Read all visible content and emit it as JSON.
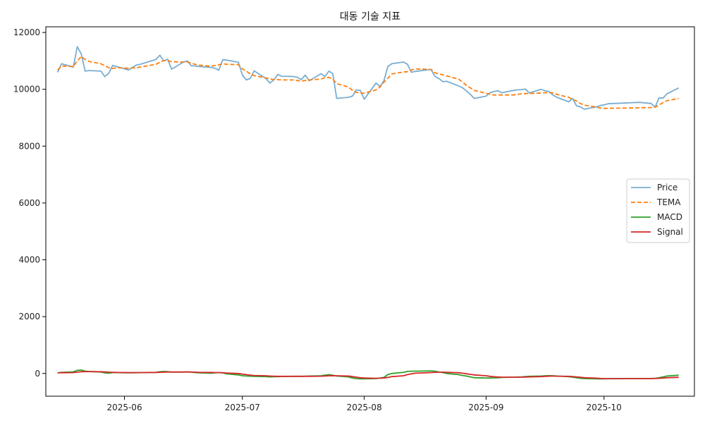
{
  "chart_data": {
    "type": "line",
    "title": "대동 기술 지표",
    "xlabel": "",
    "ylabel": "",
    "x_axis_type": "date",
    "xlim": [
      "2025-05-12",
      "2025-10-24"
    ],
    "ylim": [
      -800,
      12200
    ],
    "x_ticks": [
      "2025-06-01",
      "2025-07-01",
      "2025-08-01",
      "2025-09-01",
      "2025-10-01"
    ],
    "x_tick_labels": [
      "2025-06",
      "2025-07",
      "2025-08",
      "2025-09",
      "2025-10"
    ],
    "y_ticks": [
      0,
      2000,
      4000,
      6000,
      8000,
      10000,
      12000
    ],
    "y_tick_labels": [
      "0",
      "2000",
      "4000",
      "6000",
      "8000",
      "10000",
      "12000"
    ],
    "grid": false,
    "legend_position": "right",
    "dates": [
      "2025-05-15",
      "2025-05-16",
      "2025-05-19",
      "2025-05-20",
      "2025-05-21",
      "2025-05-22",
      "2025-05-23",
      "2025-05-26",
      "2025-05-27",
      "2025-05-28",
      "2025-05-29",
      "2025-05-30",
      "2025-06-02",
      "2025-06-04",
      "2025-06-05",
      "2025-06-09",
      "2025-06-10",
      "2025-06-11",
      "2025-06-12",
      "2025-06-13",
      "2025-06-16",
      "2025-06-17",
      "2025-06-18",
      "2025-06-19",
      "2025-06-20",
      "2025-06-23",
      "2025-06-24",
      "2025-06-25",
      "2025-06-26",
      "2025-06-27",
      "2025-06-30",
      "2025-07-01",
      "2025-07-02",
      "2025-07-03",
      "2025-07-04",
      "2025-07-07",
      "2025-07-08",
      "2025-07-09",
      "2025-07-10",
      "2025-07-11",
      "2025-07-14",
      "2025-07-15",
      "2025-07-16",
      "2025-07-17",
      "2025-07-18",
      "2025-07-21",
      "2025-07-22",
      "2025-07-23",
      "2025-07-24",
      "2025-07-25",
      "2025-07-28",
      "2025-07-29",
      "2025-07-30",
      "2025-07-31",
      "2025-08-01",
      "2025-08-04",
      "2025-08-05",
      "2025-08-06",
      "2025-08-07",
      "2025-08-08",
      "2025-08-11",
      "2025-08-12",
      "2025-08-13",
      "2025-08-14",
      "2025-08-18",
      "2025-08-19",
      "2025-08-20",
      "2025-08-21",
      "2025-08-22",
      "2025-08-25",
      "2025-08-26",
      "2025-08-27",
      "2025-08-28",
      "2025-08-29",
      "2025-09-01",
      "2025-09-02",
      "2025-09-03",
      "2025-09-04",
      "2025-09-05",
      "2025-09-08",
      "2025-09-09",
      "2025-09-10",
      "2025-09-11",
      "2025-09-12",
      "2025-09-15",
      "2025-09-16",
      "2025-09-17",
      "2025-09-18",
      "2025-09-19",
      "2025-09-22",
      "2025-09-23",
      "2025-09-24",
      "2025-09-25",
      "2025-09-26",
      "2025-09-29",
      "2025-09-30",
      "2025-10-01",
      "2025-10-02",
      "2025-10-10",
      "2025-10-13",
      "2025-10-14",
      "2025-10-15",
      "2025-10-16",
      "2025-10-17",
      "2025-10-20"
    ],
    "series": [
      {
        "name": "Price",
        "color": "#1f77b4",
        "line_style": "solid",
        "opacity": 0.6,
        "values": [
          10600,
          10900,
          10780,
          11500,
          11250,
          10640,
          10660,
          10640,
          10450,
          10560,
          10840,
          10800,
          10680,
          10850,
          10880,
          11050,
          11200,
          11000,
          11060,
          10710,
          10960,
          11000,
          10830,
          10820,
          10800,
          10770,
          10740,
          10670,
          11040,
          11030,
          10950,
          10500,
          10330,
          10380,
          10650,
          10380,
          10220,
          10330,
          10520,
          10460,
          10450,
          10420,
          10340,
          10500,
          10300,
          10550,
          10450,
          10640,
          10550,
          9680,
          9720,
          9760,
          9980,
          9960,
          9650,
          10220,
          10100,
          10300,
          10800,
          10900,
          10960,
          10880,
          10600,
          10630,
          10700,
          10450,
          10380,
          10270,
          10280,
          10120,
          10060,
          9940,
          9820,
          9680,
          9760,
          9880,
          9920,
          9950,
          9880,
          9960,
          9980,
          9990,
          10010,
          9870,
          10000,
          9950,
          9920,
          9800,
          9720,
          9560,
          9680,
          9420,
          9380,
          9300,
          9380,
          9430,
          9450,
          9490,
          9540,
          9500,
          9370,
          9700,
          9690,
          9840,
          10050
        ]
      },
      {
        "name": "TEMA",
        "color": "#ff7f0e",
        "line_style": "dashed",
        "opacity": 1,
        "values": [
          10680,
          10820,
          10800,
          11000,
          11150,
          11050,
          10980,
          10900,
          10830,
          10760,
          10730,
          10760,
          10740,
          10760,
          10780,
          10880,
          10950,
          11010,
          11010,
          10970,
          10960,
          10960,
          10920,
          10880,
          10850,
          10810,
          10840,
          10860,
          10900,
          10880,
          10870,
          10720,
          10640,
          10540,
          10480,
          10400,
          10370,
          10340,
          10340,
          10330,
          10330,
          10310,
          10290,
          10310,
          10330,
          10360,
          10410,
          10420,
          10360,
          10200,
          10080,
          9970,
          9890,
          9870,
          9860,
          9980,
          10080,
          10250,
          10390,
          10540,
          10610,
          10620,
          10680,
          10720,
          10700,
          10580,
          10540,
          10510,
          10470,
          10360,
          10250,
          10140,
          10050,
          9960,
          9860,
          9820,
          9800,
          9800,
          9800,
          9800,
          9820,
          9840,
          9850,
          9850,
          9870,
          9880,
          9890,
          9870,
          9820,
          9720,
          9640,
          9590,
          9500,
          9440,
          9380,
          9340,
          9330,
          9330,
          9350,
          9360,
          9370,
          9450,
          9530,
          9600,
          9680
        ]
      },
      {
        "name": "MACD",
        "color": "#2ca02c",
        "line_style": "solid",
        "opacity": 1,
        "values": [
          20,
          40,
          55,
          110,
          120,
          80,
          70,
          50,
          20,
          10,
          30,
          30,
          20,
          25,
          30,
          40,
          60,
          70,
          65,
          45,
          50,
          55,
          45,
          30,
          20,
          10,
          20,
          30,
          20,
          -10,
          -50,
          -80,
          -90,
          -95,
          -100,
          -110,
          -120,
          -115,
          -110,
          -105,
          -100,
          -100,
          -100,
          -95,
          -90,
          -80,
          -60,
          -40,
          -60,
          -90,
          -120,
          -160,
          -180,
          -190,
          -190,
          -180,
          -160,
          -140,
          -40,
          0,
          40,
          70,
          80,
          80,
          90,
          80,
          50,
          30,
          0,
          -40,
          -70,
          -90,
          -120,
          -150,
          -160,
          -160,
          -155,
          -150,
          -140,
          -130,
          -125,
          -120,
          -110,
          -100,
          -90,
          -80,
          -75,
          -80,
          -90,
          -110,
          -130,
          -150,
          -170,
          -180,
          -190,
          -190,
          -190,
          -185,
          -180,
          -175,
          -170,
          -150,
          -120,
          -90,
          -60
        ]
      },
      {
        "name": "Signal",
        "color": "#d62728",
        "line_style": "solid",
        "opacity": 1,
        "values": [
          20,
          25,
          30,
          45,
          60,
          65,
          65,
          60,
          55,
          45,
          40,
          35,
          30,
          30,
          30,
          35,
          40,
          45,
          50,
          50,
          50,
          50,
          50,
          45,
          40,
          35,
          30,
          30,
          25,
          15,
          0,
          -20,
          -40,
          -60,
          -70,
          -80,
          -90,
          -95,
          -100,
          -100,
          -100,
          -100,
          -100,
          -100,
          -100,
          -95,
          -90,
          -80,
          -75,
          -80,
          -90,
          -110,
          -130,
          -150,
          -160,
          -170,
          -165,
          -160,
          -140,
          -110,
          -80,
          -40,
          -10,
          10,
          30,
          40,
          45,
          45,
          40,
          25,
          10,
          -10,
          -30,
          -50,
          -80,
          -100,
          -115,
          -125,
          -130,
          -130,
          -130,
          -130,
          -125,
          -120,
          -110,
          -100,
          -95,
          -90,
          -95,
          -100,
          -110,
          -120,
          -135,
          -150,
          -165,
          -175,
          -180,
          -180,
          -180,
          -180,
          -175,
          -170,
          -160,
          -150,
          -135
        ]
      }
    ]
  }
}
